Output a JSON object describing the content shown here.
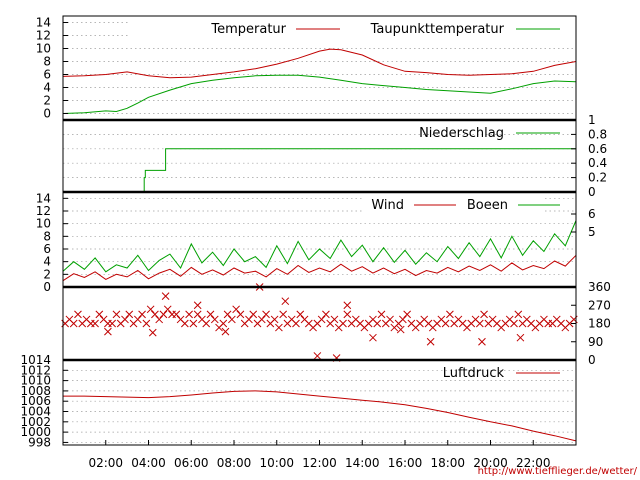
{
  "footer_url": "http://www.tiefflieger.de/wetter/",
  "colors": {
    "red": "#c00000",
    "green": "#00a000"
  },
  "chart_data": [
    {
      "type": "line",
      "panel": "temperature",
      "x_unit": "hours",
      "xlim": [
        0,
        24
      ],
      "x_ticks": [
        2,
        4,
        6,
        8,
        10,
        12,
        14,
        16,
        18,
        20,
        22
      ],
      "x_tick_labels": [
        "02:00",
        "04:00",
        "06:00",
        "08:00",
        "10:00",
        "12:00",
        "14:00",
        "16:00",
        "18:00",
        "20:00",
        "22:00"
      ],
      "ylim": [
        -1,
        15
      ],
      "y_ticks": [
        0,
        2,
        4,
        6,
        8,
        10,
        12,
        14
      ],
      "legend_position": "top-right",
      "series": [
        {
          "name": "Temperatur",
          "color": "#c00000",
          "x": [
            0,
            1,
            2,
            3,
            4,
            5,
            6,
            7,
            8,
            9,
            10,
            11,
            12,
            12.5,
            13,
            14,
            15,
            16,
            17,
            18,
            19,
            20,
            21,
            22,
            23,
            24
          ],
          "y": [
            5.7,
            5.8,
            6.0,
            6.4,
            5.8,
            5.5,
            5.6,
            6.0,
            6.4,
            6.9,
            7.6,
            8.5,
            9.6,
            9.9,
            9.8,
            9.0,
            7.5,
            6.5,
            6.3,
            6.0,
            5.9,
            6.0,
            6.1,
            6.5,
            7.4,
            8.0
          ]
        },
        {
          "name": "Taupunkttemperatur",
          "color": "#00a000",
          "x": [
            0,
            1,
            2,
            2.5,
            3,
            3.5,
            4,
            5,
            6,
            7,
            8,
            9,
            10,
            11,
            12,
            13,
            14,
            15,
            16,
            17,
            18,
            19,
            20,
            21,
            22,
            23,
            24
          ],
          "y": [
            0.0,
            0.1,
            0.4,
            0.3,
            0.8,
            1.6,
            2.5,
            3.6,
            4.6,
            5.1,
            5.5,
            5.8,
            5.9,
            5.9,
            5.6,
            5.1,
            4.6,
            4.3,
            4.0,
            3.7,
            3.5,
            3.3,
            3.1,
            3.8,
            4.6,
            5.0,
            4.9
          ]
        }
      ]
    },
    {
      "type": "line",
      "panel": "precipitation",
      "xlim": [
        0,
        24
      ],
      "ylim": [
        0,
        1
      ],
      "y_ticks": [
        0,
        0.2,
        0.4,
        0.6,
        0.8,
        1
      ],
      "y_tick_labels": [
        "0",
        "0.2",
        "0.4",
        "0.6",
        "0.8",
        "1"
      ],
      "legend_position": "top-right",
      "series": [
        {
          "name": "Niederschlag",
          "color": "#00a000",
          "x": [
            0,
            3.8,
            3.8,
            3.85,
            3.85,
            4.8,
            4.8,
            24
          ],
          "y": [
            0,
            0,
            0.2,
            0.2,
            0.3,
            0.3,
            0.6,
            0.6
          ]
        }
      ]
    },
    {
      "type": "line",
      "panel": "wind",
      "xlim": [
        0,
        24
      ],
      "ylim": [
        0,
        15
      ],
      "y_ticks": [
        0,
        2,
        4,
        6,
        8,
        10,
        12,
        14
      ],
      "y2_ticks": [
        5,
        6
      ],
      "legend_position": "top-right",
      "series": [
        {
          "name": "Wind",
          "color": "#c00000",
          "x": [
            0,
            0.5,
            1,
            1.5,
            2,
            2.5,
            3,
            3.5,
            4,
            4.5,
            5,
            5.5,
            6,
            6.5,
            7,
            7.5,
            8,
            8.5,
            9,
            9.5,
            10,
            10.5,
            11,
            11.5,
            12,
            12.5,
            13,
            13.5,
            14,
            14.5,
            15,
            15.5,
            16,
            16.5,
            17,
            17.5,
            18,
            18.5,
            19,
            19.5,
            20,
            20.5,
            21,
            21.5,
            22,
            22.5,
            23,
            23.5,
            24
          ],
          "y": [
            1.0,
            2.1,
            1.5,
            2.4,
            1.2,
            2.0,
            1.6,
            2.6,
            1.3,
            2.2,
            2.8,
            1.7,
            3.1,
            2.0,
            2.7,
            1.9,
            3.0,
            2.2,
            2.5,
            1.6,
            2.9,
            2.0,
            3.4,
            2.3,
            3.0,
            2.4,
            3.6,
            2.5,
            3.2,
            2.2,
            3.0,
            2.1,
            2.8,
            1.8,
            2.6,
            2.2,
            3.1,
            2.4,
            3.3,
            2.6,
            3.5,
            2.5,
            3.8,
            2.7,
            3.4,
            2.9,
            4.1,
            3.3,
            5.0
          ]
        },
        {
          "name": "Boeen",
          "color": "#00a000",
          "x": [
            0,
            0.5,
            1,
            1.5,
            2,
            2.5,
            3,
            3.5,
            4,
            4.5,
            5,
            5.5,
            6,
            6.5,
            7,
            7.5,
            8,
            8.5,
            9,
            9.5,
            10,
            10.5,
            11,
            11.5,
            12,
            12.5,
            13,
            13.5,
            14,
            14.5,
            15,
            15.5,
            16,
            16.5,
            17,
            17.5,
            18,
            18.5,
            19,
            19.5,
            20,
            20.5,
            21,
            21.5,
            22,
            22.5,
            23,
            23.5,
            24
          ],
          "y": [
            2.5,
            4.0,
            2.8,
            4.6,
            2.4,
            3.5,
            3.0,
            5.0,
            2.6,
            4.2,
            5.2,
            3.0,
            6.8,
            3.8,
            5.5,
            3.4,
            6.0,
            4.0,
            4.8,
            3.1,
            6.5,
            3.7,
            7.2,
            4.3,
            6.0,
            4.5,
            7.4,
            4.8,
            6.6,
            4.0,
            6.2,
            3.9,
            5.8,
            3.6,
            5.4,
            4.0,
            6.4,
            4.5,
            7.0,
            4.8,
            7.6,
            4.6,
            8.0,
            5.0,
            7.3,
            5.6,
            8.4,
            6.5,
            10.5
          ]
        }
      ]
    },
    {
      "type": "scatter",
      "panel": "wind-direction",
      "xlim": [
        0,
        24
      ],
      "ylim": [
        0,
        360
      ],
      "y2_ticks": [
        0,
        90,
        180,
        270,
        360
      ],
      "marker": "x",
      "series": [
        {
          "color": "#c00000",
          "x": [
            0.1,
            0.3,
            0.5,
            0.7,
            0.9,
            1.1,
            1.3,
            1.5,
            1.7,
            1.9,
            2.1,
            2.3,
            2.5,
            2.7,
            2.9,
            3.1,
            3.3,
            3.5,
            3.7,
            3.9,
            4.1,
            4.3,
            4.5,
            4.7,
            4.9,
            5.1,
            5.3,
            5.5,
            5.7,
            5.9,
            6.1,
            6.3,
            6.5,
            6.7,
            6.9,
            7.1,
            7.3,
            7.5,
            7.7,
            7.9,
            8.1,
            8.3,
            8.5,
            8.7,
            8.9,
            9.1,
            9.3,
            9.5,
            9.7,
            9.9,
            10.1,
            10.3,
            10.5,
            10.7,
            10.9,
            11.1,
            11.3,
            11.5,
            11.7,
            11.9,
            12.1,
            12.3,
            12.5,
            12.7,
            12.9,
            13.1,
            13.3,
            13.5,
            13.7,
            13.9,
            14.1,
            14.3,
            14.5,
            14.7,
            14.9,
            15.1,
            15.3,
            15.5,
            15.7,
            15.9,
            16.1,
            16.3,
            16.5,
            16.7,
            16.9,
            17.1,
            17.3,
            17.5,
            17.7,
            17.9,
            18.1,
            18.3,
            18.5,
            18.7,
            18.9,
            19.1,
            19.3,
            19.5,
            19.7,
            19.9,
            20.1,
            20.3,
            20.5,
            20.7,
            20.9,
            21.1,
            21.3,
            21.5,
            21.7,
            21.9,
            22.1,
            22.3,
            22.5,
            22.7,
            22.9,
            23.1,
            23.3,
            23.5,
            23.7,
            23.9,
            4.8,
            9.2,
            10.4,
            11.9,
            12.8,
            4.2,
            7.6,
            14.5,
            17.2,
            13.3,
            6.3,
            2.1,
            15.8,
            19.6,
            21.4
          ],
          "y": [
            180,
            200,
            180,
            225,
            180,
            200,
            180,
            180,
            225,
            200,
            180,
            180,
            225,
            180,
            200,
            225,
            180,
            200,
            225,
            180,
            250,
            225,
            200,
            225,
            250,
            225,
            225,
            200,
            180,
            225,
            180,
            225,
            200,
            180,
            225,
            200,
            160,
            180,
            225,
            200,
            250,
            225,
            180,
            200,
            225,
            180,
            200,
            225,
            180,
            200,
            160,
            225,
            180,
            200,
            180,
            225,
            200,
            180,
            160,
            180,
            200,
            225,
            180,
            200,
            160,
            180,
            225,
            180,
            200,
            180,
            160,
            180,
            200,
            180,
            225,
            180,
            200,
            160,
            180,
            200,
            225,
            180,
            160,
            180,
            200,
            180,
            160,
            180,
            200,
            180,
            225,
            180,
            200,
            180,
            160,
            180,
            200,
            180,
            225,
            180,
            200,
            180,
            160,
            180,
            200,
            180,
            225,
            180,
            200,
            180,
            160,
            180,
            200,
            180,
            180,
            200,
            180,
            160,
            180,
            200,
            315,
            360,
            290,
            20,
            10,
            135,
            140,
            110,
            90,
            270,
            270,
            140,
            150,
            90,
            110
          ]
        }
      ]
    },
    {
      "type": "line",
      "panel": "pressure",
      "xlim": [
        0,
        24
      ],
      "ylim": [
        997.5,
        1014
      ],
      "y_ticks": [
        998,
        1000,
        1002,
        1004,
        1006,
        1008,
        1010,
        1012,
        1014
      ],
      "legend_position": "top-right",
      "series": [
        {
          "name": "Luftdruck",
          "color": "#c00000",
          "x": [
            0,
            1,
            2,
            3,
            4,
            5,
            6,
            7,
            8,
            9,
            10,
            11,
            12,
            13,
            14,
            15,
            16,
            17,
            18,
            19,
            20,
            21,
            22,
            23,
            24
          ],
          "y": [
            1007.0,
            1007.0,
            1006.9,
            1006.8,
            1006.7,
            1006.9,
            1007.2,
            1007.6,
            1007.9,
            1008.0,
            1007.8,
            1007.4,
            1007.0,
            1006.6,
            1006.2,
            1005.8,
            1005.3,
            1004.6,
            1003.8,
            1002.9,
            1002.0,
            1001.2,
            1000.2,
            999.3,
            998.3
          ]
        }
      ]
    }
  ]
}
